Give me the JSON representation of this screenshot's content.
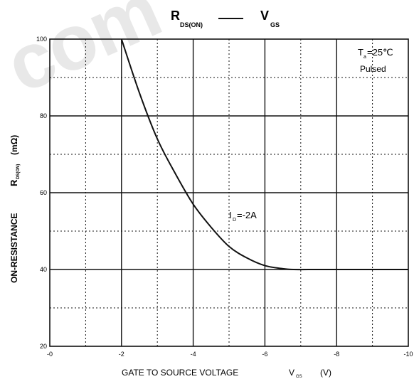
{
  "chart_data": {
    "type": "line",
    "title": {
      "left_main": "R",
      "left_sub": "DS(ON)",
      "separator": "—",
      "right_main": "V",
      "right_sub": "GS"
    },
    "xlabel": {
      "text": "GATE TO SOURCE VOLTAGE",
      "symbol_main": "V",
      "symbol_sub": "GS",
      "unit": "(V)"
    },
    "ylabel": {
      "text": "ON-RESISTANCE",
      "symbol_main": "R",
      "symbol_sub": "DS(ON)",
      "unit": "(mΩ)"
    },
    "xlim": [
      0,
      -10
    ],
    "ylim": [
      20,
      100
    ],
    "x_ticks": [
      {
        "value": 0,
        "label": "-0"
      },
      {
        "value": -2,
        "label": "-2"
      },
      {
        "value": -4,
        "label": "-4"
      },
      {
        "value": -6,
        "label": "-6"
      },
      {
        "value": -8,
        "label": "-8"
      },
      {
        "value": -10,
        "label": "-10"
      }
    ],
    "y_ticks": [
      {
        "value": 20,
        "label": "20"
      },
      {
        "value": 40,
        "label": "40"
      },
      {
        "value": 60,
        "label": "60"
      },
      {
        "value": 80,
        "label": "80"
      },
      {
        "value": 100,
        "label": "100"
      }
    ],
    "grid": "major solid, minor dotted",
    "series": [
      {
        "name": "",
        "color": "#111111",
        "x": [
          -2.0,
          -2.5,
          -3.0,
          -3.5,
          -4.0,
          -4.5,
          -5.0,
          -5.5,
          -6.0,
          -6.5,
          -6.8,
          -7.5,
          -8.5,
          -10.0
        ],
        "y": [
          100,
          86,
          74,
          65,
          57,
          51,
          46,
          43,
          41,
          40.2,
          40,
          40,
          40,
          40
        ]
      }
    ],
    "annotations": {
      "condition_temp_main": "T",
      "condition_temp_sub": "a",
      "condition_temp_value": "=25℃",
      "condition_mode": "Pulsed",
      "curve_label_main": "I",
      "curve_label_sub": "D",
      "curve_label_value": "=-2A"
    }
  },
  "watermark": "com"
}
